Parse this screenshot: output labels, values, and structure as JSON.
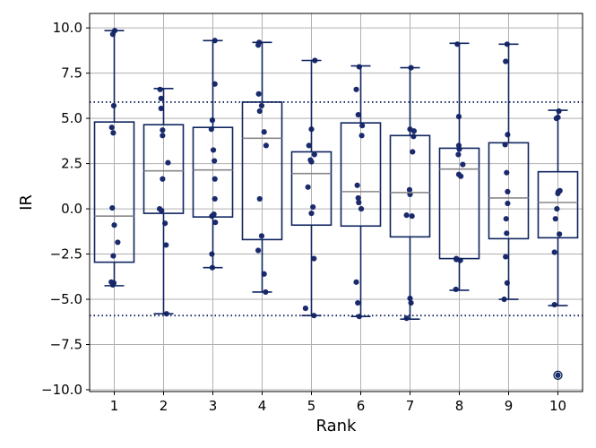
{
  "chart_data": {
    "type": "box",
    "xlabel": "Rank",
    "ylabel": "IR",
    "categories": [
      "1",
      "2",
      "3",
      "4",
      "5",
      "6",
      "7",
      "8",
      "9",
      "10"
    ],
    "ylim": [
      -10.1,
      10.8
    ],
    "yticks": [
      -10.0,
      -7.5,
      -5.0,
      -2.5,
      0.0,
      2.5,
      5.0,
      7.5,
      10.0
    ],
    "ytick_labels": [
      "−10.0",
      "−7.5",
      "−5.0",
      "−2.5",
      "0.0",
      "2.5",
      "5.0",
      "7.5",
      "10.0"
    ],
    "grid": true,
    "reference_lines": [
      5.9,
      -5.9
    ],
    "colors": {
      "box": "#0f2460",
      "points": "#1a2a6c",
      "median": "#888888",
      "grid": "#b0b0b0",
      "refline": "#0f2460"
    },
    "boxes": [
      {
        "category": "1",
        "q1": -2.95,
        "median": -0.4,
        "q3": 4.8,
        "whislo": -4.25,
        "whishi": 9.85,
        "fliers": []
      },
      {
        "category": "2",
        "q1": -0.25,
        "median": 2.1,
        "q3": 4.65,
        "whislo": -5.8,
        "whishi": 6.65,
        "fliers": []
      },
      {
        "category": "3",
        "q1": -0.45,
        "median": 2.15,
        "q3": 4.5,
        "whislo": -3.25,
        "whishi": 9.3,
        "fliers": []
      },
      {
        "category": "4",
        "q1": -1.7,
        "median": 3.9,
        "q3": 5.9,
        "whislo": -4.6,
        "whishi": 9.2,
        "fliers": []
      },
      {
        "category": "5",
        "q1": -0.9,
        "median": 1.95,
        "q3": 3.15,
        "whislo": -5.9,
        "whishi": 8.2,
        "fliers": []
      },
      {
        "category": "6",
        "q1": -0.95,
        "median": 0.95,
        "q3": 4.75,
        "whislo": -5.95,
        "whishi": 7.9,
        "fliers": []
      },
      {
        "category": "7",
        "q1": -1.55,
        "median": 0.9,
        "q3": 4.05,
        "whislo": -6.1,
        "whishi": 7.8,
        "fliers": []
      },
      {
        "category": "8",
        "q1": -2.75,
        "median": 2.2,
        "q3": 3.35,
        "whislo": -4.5,
        "whishi": 9.15,
        "fliers": []
      },
      {
        "category": "9",
        "q1": -1.65,
        "median": 0.6,
        "q3": 3.65,
        "whislo": -5.0,
        "whishi": 9.1,
        "fliers": []
      },
      {
        "category": "10",
        "q1": -1.6,
        "median": 0.35,
        "q3": 2.05,
        "whislo": -5.35,
        "whishi": 5.45,
        "fliers": [
          -9.2
        ]
      }
    ],
    "points": [
      [
        9.85,
        9.65,
        5.7,
        4.5,
        4.2,
        0.05,
        -0.9,
        -1.85,
        -2.6,
        -4.05,
        -4.1,
        -4.2
      ],
      [
        6.6,
        6.1,
        5.55,
        4.35,
        4.05,
        2.55,
        1.65,
        0.0,
        -0.1,
        -0.8,
        -2.0,
        -5.8
      ],
      [
        9.3,
        6.9,
        4.9,
        4.4,
        3.25,
        2.65,
        1.65,
        0.55,
        -0.3,
        -0.4,
        -0.75,
        -2.5,
        -3.25
      ],
      [
        9.2,
        9.05,
        6.35,
        5.7,
        5.4,
        4.25,
        3.5,
        0.55,
        -1.5,
        -2.3,
        -3.6,
        -4.6
      ],
      [
        8.2,
        4.4,
        3.5,
        3.0,
        2.7,
        2.6,
        1.2,
        0.1,
        -0.25,
        -2.75,
        -5.5,
        -5.9
      ],
      [
        7.85,
        6.6,
        5.2,
        4.6,
        4.05,
        1.3,
        0.6,
        0.35,
        0.0,
        -4.05,
        -5.2,
        -5.95
      ],
      [
        7.8,
        4.4,
        4.3,
        4.0,
        3.15,
        1.05,
        0.8,
        -0.35,
        -0.4,
        -4.95,
        -5.2,
        -6.05
      ],
      [
        9.1,
        5.1,
        3.5,
        3.3,
        3.0,
        2.45,
        1.9,
        1.8,
        -2.75,
        -2.8,
        -2.85,
        -4.45
      ],
      [
        9.1,
        8.15,
        4.1,
        3.55,
        2.0,
        0.95,
        0.3,
        -0.55,
        -1.35,
        -2.65,
        -4.1,
        -5.0
      ],
      [
        5.4,
        5.05,
        5.0,
        1.0,
        0.95,
        0.85,
        0.0,
        -0.55,
        -1.4,
        -2.4,
        -5.3,
        -9.2
      ]
    ],
    "jitter": [
      [
        0.01,
        -0.03,
        -0.01,
        -0.05,
        -0.02,
        -0.04,
        0.0,
        0.07,
        -0.02,
        -0.06,
        -0.01,
        -0.03
      ],
      [
        -0.07,
        -0.05,
        -0.05,
        -0.02,
        -0.02,
        0.09,
        -0.02,
        -0.08,
        -0.04,
        0.03,
        0.05,
        0.06
      ],
      [
        0.04,
        0.04,
        -0.01,
        -0.03,
        0.01,
        0.03,
        0.04,
        0.04,
        0.02,
        -0.02,
        0.05,
        -0.02,
        -0.01
      ],
      [
        -0.06,
        -0.08,
        -0.07,
        -0.01,
        -0.05,
        0.04,
        0.08,
        -0.05,
        -0.01,
        -0.08,
        0.04,
        0.07
      ],
      [
        0.07,
        0.0,
        -0.05,
        0.06,
        -0.02,
        0.0,
        -0.07,
        0.03,
        0.0,
        0.05,
        -0.12,
        0.05
      ],
      [
        -0.03,
        -0.09,
        -0.05,
        0.03,
        0.02,
        -0.07,
        -0.05,
        -0.04,
        0.01,
        -0.09,
        -0.06,
        -0.03
      ],
      [
        0.02,
        0.0,
        0.08,
        0.07,
        0.05,
        -0.01,
        0.0,
        -0.07,
        0.04,
        0.0,
        0.02,
        -0.07
      ],
      [
        -0.04,
        -0.01,
        -0.01,
        0.0,
        -0.02,
        0.07,
        -0.01,
        0.03,
        -0.06,
        -0.06,
        0.02,
        -0.07
      ],
      [
        -0.03,
        -0.06,
        -0.02,
        -0.07,
        -0.04,
        -0.02,
        -0.02,
        -0.05,
        -0.04,
        -0.06,
        -0.03,
        -0.09
      ],
      [
        0.02,
        0.0,
        -0.03,
        0.04,
        0.01,
        0.0,
        -0.02,
        -0.05,
        0.03,
        -0.07,
        -0.07,
        0.0
      ]
    ]
  }
}
